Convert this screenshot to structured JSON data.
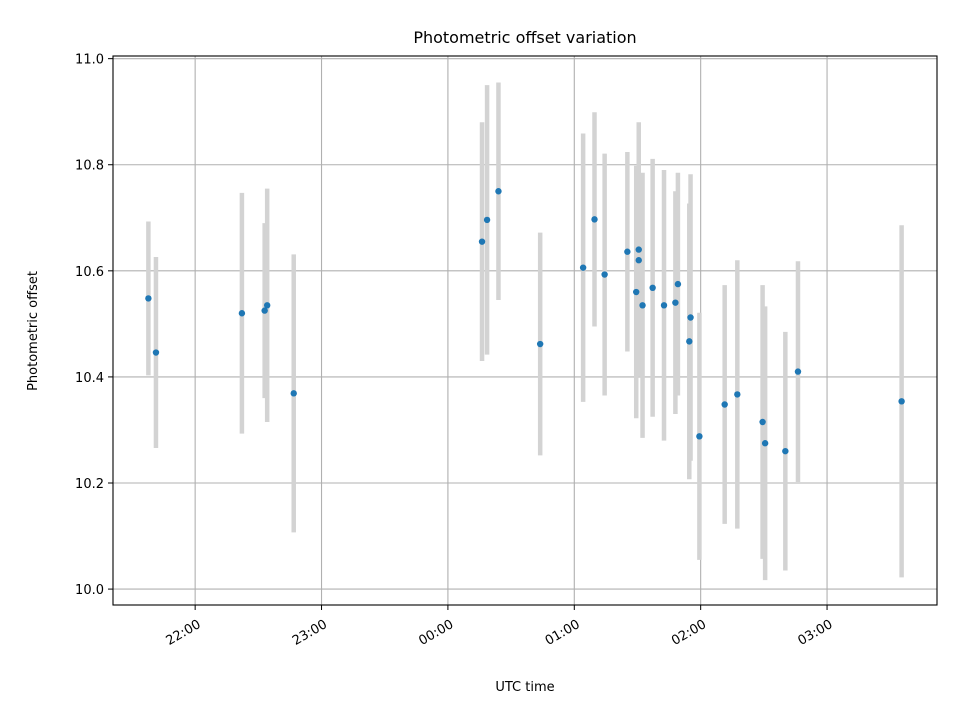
{
  "chart_data": {
    "type": "scatter",
    "title": "Photometric offset variation",
    "xlabel": "UTC time",
    "ylabel": "Photometric offset",
    "x_unit": "hours since 00:00 UTC",
    "xlim": [
      -2.65,
      3.87
    ],
    "ylim": [
      9.97,
      11.005
    ],
    "x_ticks": [
      {
        "value": -2,
        "label": "22:00"
      },
      {
        "value": -1,
        "label": "23:00"
      },
      {
        "value": 0,
        "label": "00:00"
      },
      {
        "value": 1,
        "label": "01:00"
      },
      {
        "value": 2,
        "label": "02:00"
      },
      {
        "value": 3,
        "label": "03:00"
      }
    ],
    "y_ticks": [
      {
        "value": 10.0,
        "label": "10.0"
      },
      {
        "value": 10.2,
        "label": "10.2"
      },
      {
        "value": 10.4,
        "label": "10.4"
      },
      {
        "value": 10.6,
        "label": "10.6"
      },
      {
        "value": 10.8,
        "label": "10.8"
      },
      {
        "value": 11.0,
        "label": "11.0"
      }
    ],
    "grid": true,
    "marker_color": "#1f77b4",
    "errorbar_color": "#d3d3d3",
    "points": [
      {
        "x": -2.37,
        "y": 10.548,
        "err": 0.145
      },
      {
        "x": -2.31,
        "y": 10.446,
        "err": 0.18
      },
      {
        "x": -1.63,
        "y": 10.52,
        "err": 0.227
      },
      {
        "x": -1.45,
        "y": 10.525,
        "err": 0.165
      },
      {
        "x": -1.43,
        "y": 10.535,
        "err": 0.22
      },
      {
        "x": -1.22,
        "y": 10.369,
        "err": 0.262
      },
      {
        "x": 0.27,
        "y": 10.655,
        "err": 0.225
      },
      {
        "x": 0.31,
        "y": 10.696,
        "err": 0.254
      },
      {
        "x": 0.4,
        "y": 10.75,
        "err": 0.205
      },
      {
        "x": 0.73,
        "y": 10.462,
        "err": 0.21
      },
      {
        "x": 1.07,
        "y": 10.606,
        "err": 0.253
      },
      {
        "x": 1.16,
        "y": 10.697,
        "err": 0.202
      },
      {
        "x": 1.24,
        "y": 10.593,
        "err": 0.228
      },
      {
        "x": 1.42,
        "y": 10.636,
        "err": 0.188
      },
      {
        "x": 1.49,
        "y": 10.56,
        "err": 0.238
      },
      {
        "x": 1.51,
        "y": 10.64,
        "err": 0.24
      },
      {
        "x": 1.51,
        "y": 10.62,
        "err": 0.165
      },
      {
        "x": 1.54,
        "y": 10.535,
        "err": 0.25
      },
      {
        "x": 1.62,
        "y": 10.568,
        "err": 0.243
      },
      {
        "x": 1.71,
        "y": 10.535,
        "err": 0.255
      },
      {
        "x": 1.8,
        "y": 10.54,
        "err": 0.21
      },
      {
        "x": 1.82,
        "y": 10.575,
        "err": 0.21
      },
      {
        "x": 1.91,
        "y": 10.467,
        "err": 0.26
      },
      {
        "x": 1.92,
        "y": 10.512,
        "err": 0.27
      },
      {
        "x": 1.99,
        "y": 10.288,
        "err": 0.233
      },
      {
        "x": 2.19,
        "y": 10.348,
        "err": 0.225
      },
      {
        "x": 2.29,
        "y": 10.367,
        "err": 0.253
      },
      {
        "x": 2.49,
        "y": 10.315,
        "err": 0.258
      },
      {
        "x": 2.51,
        "y": 10.275,
        "err": 0.258
      },
      {
        "x": 2.67,
        "y": 10.26,
        "err": 0.225
      },
      {
        "x": 2.77,
        "y": 10.41,
        "err": 0.208
      },
      {
        "x": 3.59,
        "y": 10.354,
        "err": 0.332
      }
    ]
  }
}
